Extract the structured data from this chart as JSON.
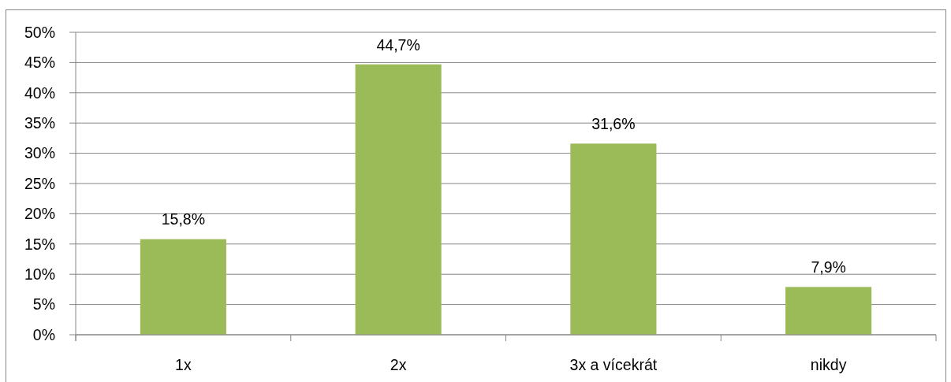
{
  "chart_data": {
    "type": "bar",
    "categories": [
      "1x",
      "2x",
      "3x a vícekrát",
      "nikdy"
    ],
    "values": [
      15.8,
      44.7,
      31.6,
      7.9
    ],
    "color": "#9bbb59",
    "value_labels": [
      "15,8%",
      "44,7%",
      "31,6%",
      "7,9%"
    ],
    "ylim": [
      0,
      50
    ],
    "yticks": [
      {
        "value": 0,
        "label": "0%"
      },
      {
        "value": 5,
        "label": "5%"
      },
      {
        "value": 10,
        "label": "10%"
      },
      {
        "value": 15,
        "label": "15%"
      },
      {
        "value": 20,
        "label": "20%"
      },
      {
        "value": 25,
        "label": "25%"
      },
      {
        "value": 30,
        "label": "30%"
      },
      {
        "value": 35,
        "label": "35%"
      },
      {
        "value": 40,
        "label": "40%"
      },
      {
        "value": 45,
        "label": "45%"
      },
      {
        "value": 50,
        "label": "50%"
      }
    ],
    "grid": "y"
  }
}
